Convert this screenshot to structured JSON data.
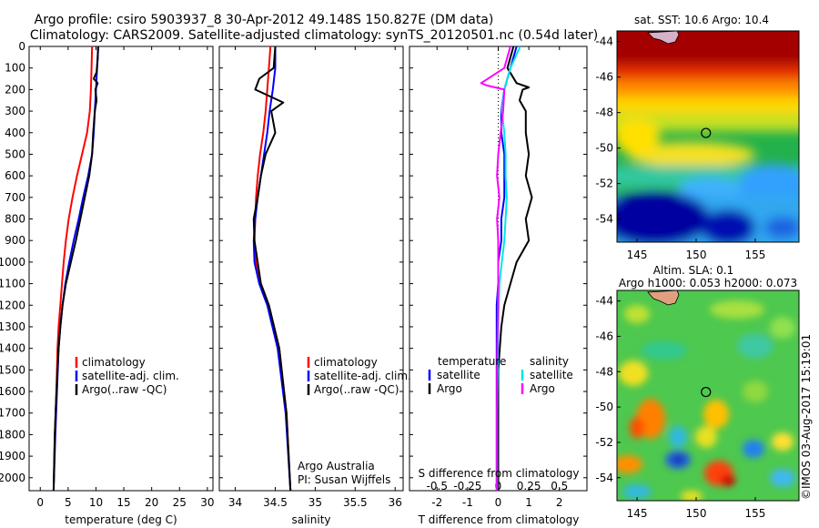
{
  "header": {
    "line1": "Argo profile: csiro 5903937_8 30-Apr-2012 49.148S 150.827E (DM data)",
    "line2": "Climatology: CARS2009. Satellite-adjusted climatology: synTS_20120501.nc (0.54d later)"
  },
  "colors": {
    "climatology": "#ff0000",
    "satellite": "#0000ff",
    "argo": "#000000",
    "salinity_satellite": "#00e5e5",
    "salinity_argo": "#ff00ff"
  },
  "depth_ticks": [
    "0",
    "100",
    "200",
    "300",
    "400",
    "500",
    "600",
    "700",
    "800",
    "900",
    "1000",
    "1100",
    "1200",
    "1300",
    "1400",
    "1500",
    "1600",
    "1700",
    "1800",
    "1900",
    "2000"
  ],
  "legends": {
    "temperature": [
      "climatology",
      "satellite-adj. clim.",
      "Argo(..raw -QC)"
    ],
    "salinity": [
      "climatology",
      "satellite-adj. clim.",
      "Argo(..raw -QC)"
    ],
    "diff_temp_title": "temperature",
    "diff_sal_title": "salinity",
    "diff_temp": [
      "satellite",
      "Argo"
    ],
    "diff_sal": [
      "satellite",
      "Argo"
    ]
  },
  "credits": {
    "org": "Argo Australia",
    "pi": "PI: Susan Wijffels"
  },
  "maps": {
    "sst_title": "sat. SST: 10.6  Argo: 10.4",
    "sla_title1": "Altim. SLA: 0.1",
    "sla_title2": "Argo h1000: 0.053 h2000: 0.073",
    "lat_ticks": [
      "-44",
      "-46",
      "-48",
      "-50",
      "-52",
      "-54"
    ],
    "lon_ticks": [
      "145",
      "150",
      "155"
    ],
    "float_lon": 150.827,
    "float_lat": -49.148
  },
  "watermark": "©IMOS 03-Aug-2017 15:19:01",
  "chart_data": [
    {
      "type": "line",
      "title": "",
      "xlabel": "temperature (deg C)",
      "ylabel": "",
      "xticks": [
        "0",
        "5",
        "10",
        "15",
        "20",
        "25",
        "30"
      ],
      "xlim": [
        -2,
        31
      ],
      "ylim": [
        2060,
        0
      ],
      "series": [
        {
          "name": "climatology",
          "x": [
            9.3,
            9.2,
            9.1,
            8.9,
            8.4,
            7.5,
            6.6,
            5.8,
            5.1,
            4.6,
            4.2,
            3.9,
            3.6,
            3.3,
            3.1,
            2.9,
            2.6,
            2.4
          ],
          "y": [
            0,
            100,
            200,
            300,
            400,
            500,
            600,
            700,
            800,
            900,
            1000,
            1100,
            1200,
            1300,
            1400,
            1600,
            1800,
            2060
          ]
        },
        {
          "name": "satellite-adj. clim.",
          "x": [
            10.4,
            10.2,
            10.0,
            9.8,
            9.6,
            9.3,
            8.6,
            7.7,
            6.9,
            6.0,
            5.2,
            4.5,
            4.0,
            3.6,
            3.3,
            3.0,
            2.7,
            2.4
          ],
          "y": [
            0,
            100,
            200,
            300,
            400,
            500,
            600,
            700,
            800,
            900,
            1000,
            1100,
            1200,
            1300,
            1400,
            1600,
            1800,
            2060
          ]
        },
        {
          "name": "Argo(..raw -QC)",
          "x": [
            10.4,
            10.3,
            10.1,
            9.6,
            10.3,
            9.9,
            10.1,
            9.8,
            9.5,
            9.3,
            8.8,
            8.0,
            7.2,
            6.4,
            5.5,
            4.6,
            4.0,
            3.6,
            3.3,
            2.9,
            2.6,
            2.4
          ],
          "y": [
            0,
            60,
            120,
            150,
            170,
            200,
            250,
            300,
            400,
            500,
            600,
            700,
            800,
            900,
            1000,
            1100,
            1200,
            1300,
            1400,
            1600,
            1800,
            2060
          ]
        }
      ]
    },
    {
      "type": "line",
      "title": "",
      "xlabel": "salinity",
      "ylabel": "",
      "xticks": [
        "34",
        "34.5",
        "35",
        "35.5",
        "36"
      ],
      "xlim": [
        33.8,
        36.1
      ],
      "ylim": [
        2060,
        0
      ],
      "series": [
        {
          "name": "climatology",
          "x": [
            34.44,
            34.42,
            34.4,
            34.38,
            34.35,
            34.31,
            34.28,
            34.26,
            34.25,
            34.24,
            34.26,
            34.32,
            34.42,
            34.55,
            34.64,
            34.69
          ],
          "y": [
            0,
            100,
            200,
            300,
            400,
            500,
            600,
            700,
            800,
            900,
            1000,
            1100,
            1200,
            1400,
            1700,
            2060
          ]
        },
        {
          "name": "satellite-adj. clim.",
          "x": [
            34.5,
            34.5,
            34.47,
            34.43,
            34.4,
            34.36,
            34.32,
            34.28,
            34.25,
            34.23,
            34.24,
            34.3,
            34.4,
            34.53,
            34.63,
            34.69
          ],
          "y": [
            0,
            100,
            200,
            300,
            400,
            500,
            600,
            700,
            800,
            900,
            1000,
            1100,
            1200,
            1400,
            1700,
            2060
          ]
        },
        {
          "name": "Argo(..raw -QC)",
          "x": [
            34.5,
            34.48,
            34.3,
            34.25,
            34.6,
            34.45,
            34.5,
            34.38,
            34.32,
            34.28,
            34.23,
            34.24,
            34.32,
            34.42,
            34.55,
            34.64,
            34.69
          ],
          "y": [
            0,
            100,
            150,
            200,
            260,
            300,
            400,
            500,
            600,
            700,
            800,
            900,
            1100,
            1200,
            1400,
            1700,
            2060
          ]
        }
      ]
    },
    {
      "type": "line",
      "title": "",
      "xlabel": "T difference from climatology",
      "xlabel_top": "S difference from climatology",
      "xticks_bottom": [
        "-2",
        "-1",
        "0",
        "1",
        "2"
      ],
      "xticks_top": [
        "-0.5",
        "-0.25",
        "0",
        "0.25",
        "0.5"
      ],
      "xlim_T": [
        -2.9,
        2.9
      ],
      "xlim_S": [
        -0.725,
        0.725
      ],
      "ylim": [
        2060,
        0
      ],
      "series": [
        {
          "name": "temperature satellite",
          "x": [
            0.6,
            0.4,
            0.2,
            0.1,
            0.1,
            0.2,
            0.2,
            0.2,
            0.1,
            0.1,
            0.0,
            0.0,
            -0.05,
            -0.05,
            -0.05,
            -0.05,
            -0.05
          ],
          "y": [
            0,
            100,
            200,
            300,
            400,
            500,
            600,
            700,
            800,
            900,
            1000,
            1100,
            1200,
            1300,
            1500,
            1800,
            2060
          ]
        },
        {
          "name": "temperature Argo",
          "x": [
            0.5,
            0.3,
            0.6,
            1.0,
            0.8,
            0.7,
            0.9,
            0.9,
            1.0,
            0.9,
            1.1,
            0.9,
            1.0,
            0.6,
            0.4,
            0.2,
            0.1,
            0.0,
            0.0,
            0.0
          ],
          "y": [
            0,
            100,
            170,
            190,
            200,
            250,
            300,
            400,
            500,
            600,
            700,
            800,
            900,
            1000,
            1100,
            1200,
            1300,
            1500,
            1800,
            2060
          ]
        },
        {
          "name": "salinity satellite",
          "x": [
            0.18,
            0.1,
            0.05,
            0.03,
            0.05,
            0.06,
            0.06,
            0.07,
            0.06,
            0.05,
            0.03,
            0.01,
            0.0,
            -0.01,
            -0.01
          ],
          "y": [
            0,
            100,
            200,
            300,
            400,
            500,
            600,
            700,
            800,
            900,
            1000,
            1100,
            1300,
            1700,
            2060
          ]
        },
        {
          "name": "salinity Argo",
          "x": [
            0.1,
            0.05,
            -0.14,
            -0.1,
            0.05,
            0.04,
            0.02,
            0.0,
            -0.01,
            0.01,
            -0.01,
            0.0,
            0.0,
            0.0,
            -0.01,
            -0.01
          ],
          "y": [
            0,
            100,
            170,
            180,
            200,
            300,
            400,
            500,
            600,
            700,
            800,
            900,
            1000,
            1100,
            1500,
            2060
          ]
        }
      ]
    }
  ]
}
